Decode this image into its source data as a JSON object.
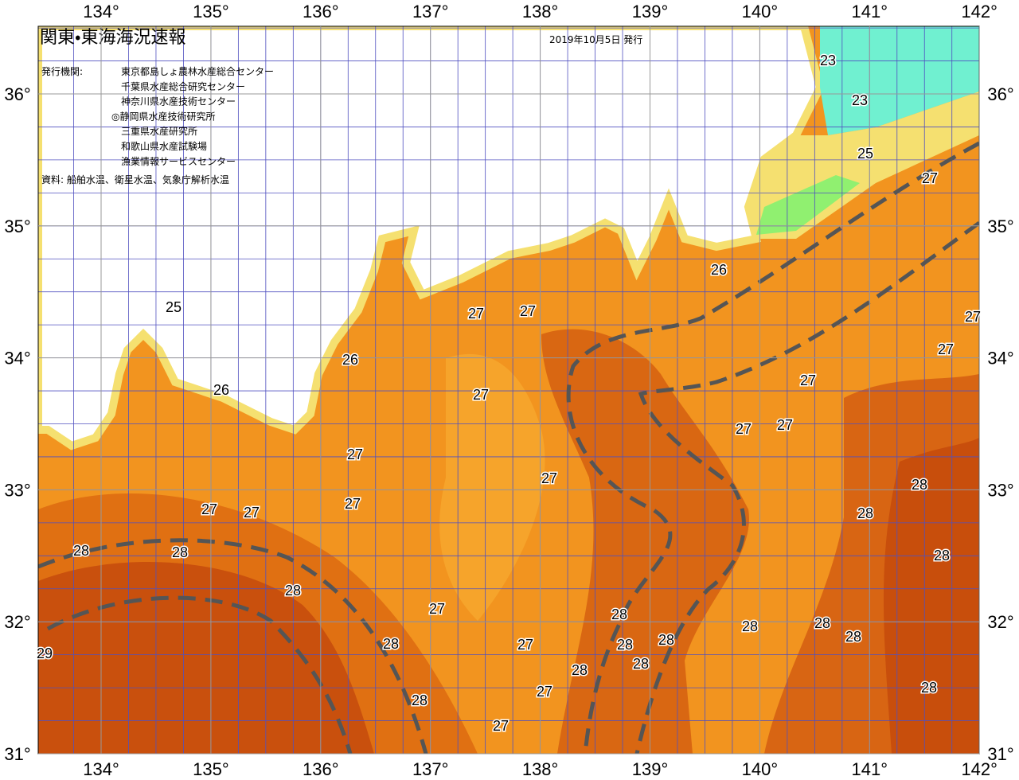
{
  "header": {
    "title": "関東・東海海況速報",
    "date": "2019年10月5日 発行"
  },
  "publishers": {
    "label": "発行機関:",
    "items": [
      "東京都島しょ農林水産総合センター",
      "千葉県水産総合研究センター",
      "神奈川県水産技術センター",
      "◎静岡県水産技術研究所",
      "三重県水産研究所",
      "和歌山県水産試験場",
      "漁業情報サービスセンター"
    ]
  },
  "source": "資料: 船舶水温、衛星水温、気象庁解析水温",
  "map": {
    "lon_ticks": [
      {
        "value": 134,
        "label": "134°"
      },
      {
        "value": 135,
        "label": "135°"
      },
      {
        "value": 136,
        "label": "136°"
      },
      {
        "value": 137,
        "label": "137°"
      },
      {
        "value": 138,
        "label": "138°"
      },
      {
        "value": 139,
        "label": "139°"
      },
      {
        "value": 140,
        "label": "140°"
      },
      {
        "value": 141,
        "label": "141°"
      },
      {
        "value": 142,
        "label": "142°"
      }
    ],
    "lat_ticks": [
      {
        "value": 36,
        "label": "36°"
      },
      {
        "value": 35,
        "label": "35°"
      },
      {
        "value": 34,
        "label": "34°"
      },
      {
        "value": 33,
        "label": "33°"
      },
      {
        "value": 32,
        "label": "32°"
      },
      {
        "value": 31,
        "label": "31°"
      }
    ],
    "contour_labels": [
      23,
      23,
      25,
      27,
      26,
      27,
      27,
      25,
      26,
      26,
      27,
      27,
      27,
      27,
      27,
      27,
      28,
      27,
      27,
      27,
      28,
      28,
      28,
      28,
      28,
      27,
      28,
      28,
      28,
      28,
      28,
      28,
      27,
      28,
      28,
      28,
      29,
      27,
      28,
      28,
      27,
      27,
      27
    ]
  }
}
